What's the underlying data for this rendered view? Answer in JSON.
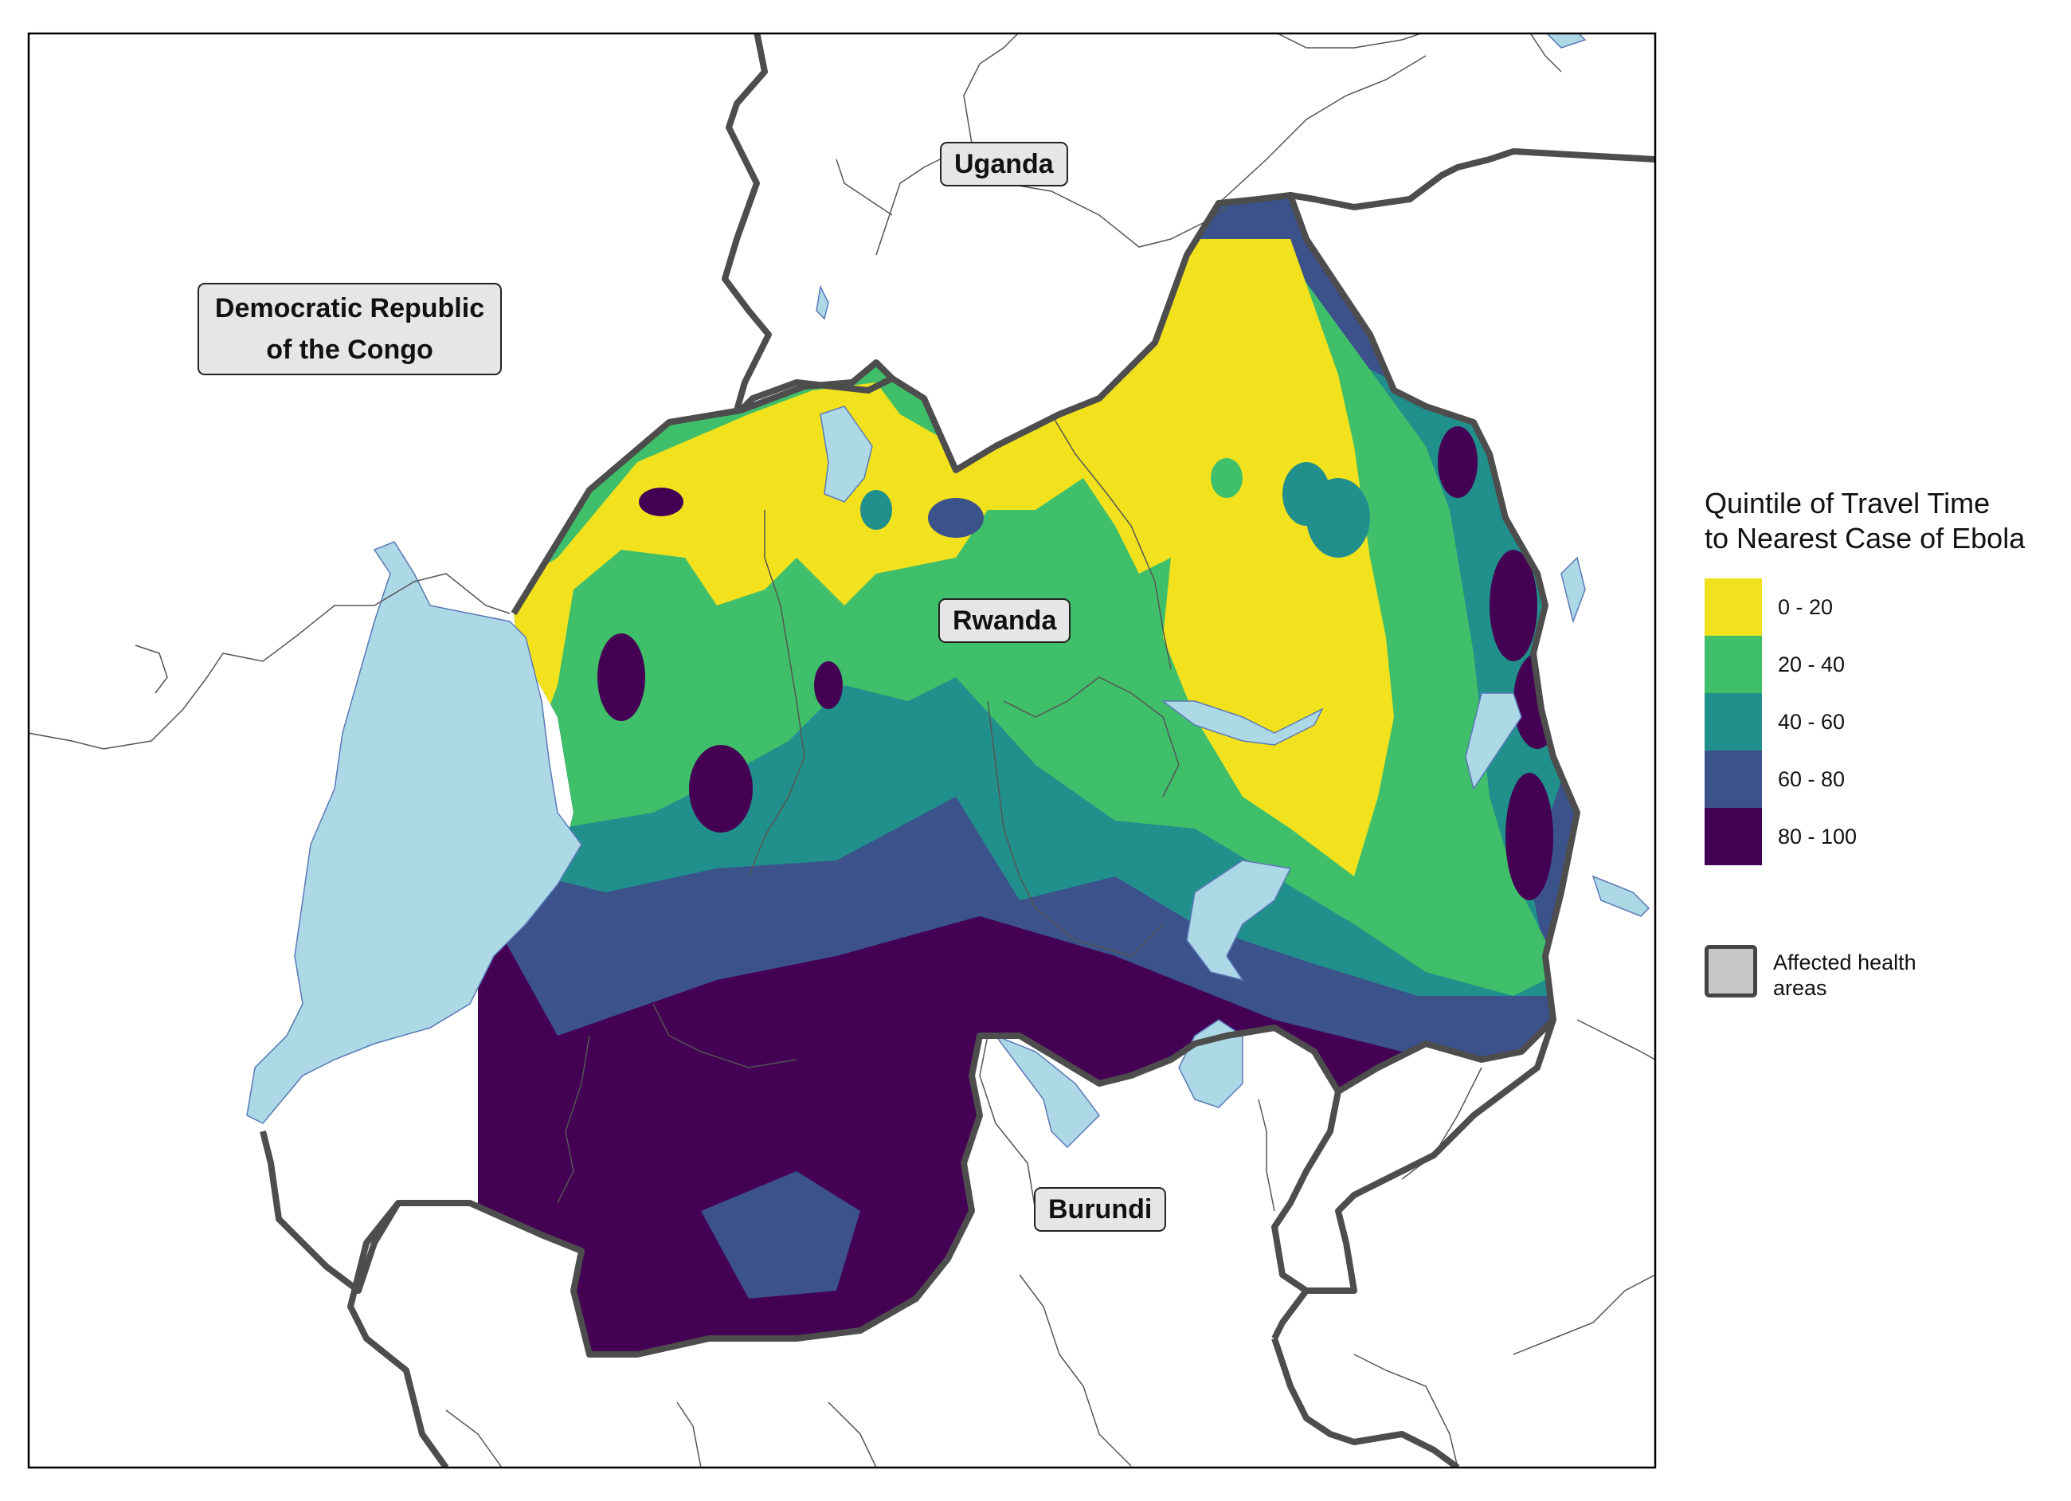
{
  "map": {
    "countries": [
      {
        "name": "Democratic Republic\nof the Congo",
        "line1": "Democratic Republic",
        "line2": "of the Congo"
      },
      {
        "name": "Uganda"
      },
      {
        "name": "Rwanda"
      },
      {
        "name": "Burundi"
      }
    ],
    "colors": {
      "lake": "#add8e6",
      "border": "#4d4d4d",
      "admin": "#555555",
      "frame": "#000000"
    }
  },
  "legend": {
    "title_line1": "Quintile of Travel Time",
    "title_line2": "to Nearest Case of Ebola",
    "items": [
      {
        "label": "0 - 20",
        "color": "#f2e21d"
      },
      {
        "label": "20 - 40",
        "color": "#40bf6a"
      },
      {
        "label": "40 - 60",
        "color": "#21908c"
      },
      {
        "label": "60 - 80",
        "color": "#3b528b"
      },
      {
        "label": "80 - 100",
        "color": "#440154"
      }
    ],
    "affected_label": "Affected health areas"
  }
}
